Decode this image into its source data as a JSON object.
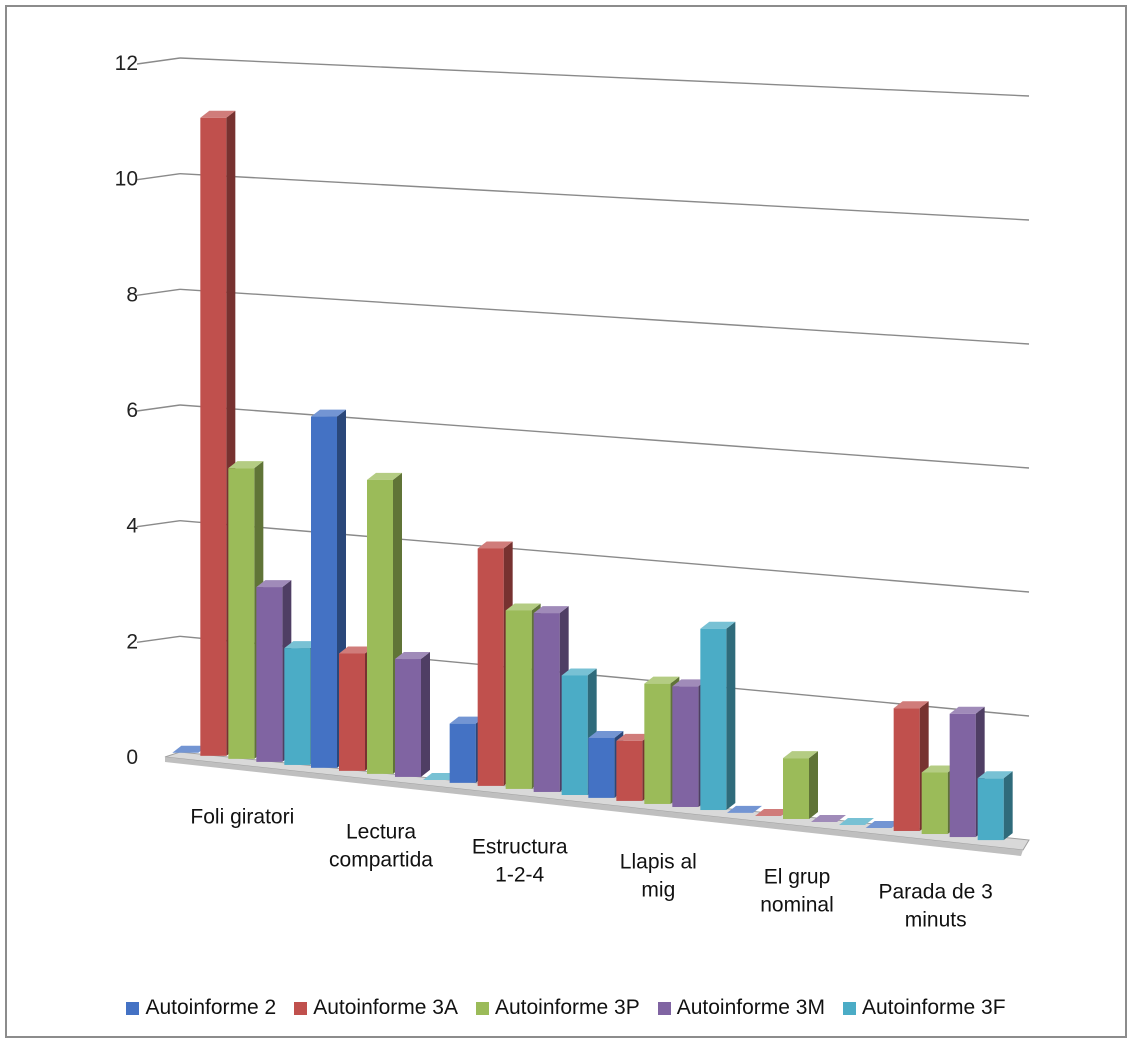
{
  "chart_data": {
    "type": "bar",
    "categories": [
      [
        "Foli giratori"
      ],
      [
        "Lectura",
        "compartida"
      ],
      [
        "Estructura",
        "1-2-4"
      ],
      [
        "Llapis al",
        "mig"
      ],
      [
        "El grup",
        "nominal"
      ],
      [
        "Parada de 3",
        "minuts"
      ]
    ],
    "series": [
      {
        "name": "Autoinforme 2",
        "color": "#4472C4",
        "values": [
          0,
          6,
          1,
          1,
          0,
          0
        ]
      },
      {
        "name": "Autoinforme 3A",
        "color": "#C0504D",
        "values": [
          11,
          2,
          4,
          1,
          0,
          2
        ]
      },
      {
        "name": "Autoinforme 3P",
        "color": "#9BBB59",
        "values": [
          5,
          5,
          3,
          2,
          1,
          1
        ]
      },
      {
        "name": "Autoinforme 3M",
        "color": "#8064A2",
        "values": [
          3,
          2,
          3,
          2,
          0,
          2
        ]
      },
      {
        "name": "Autoinforme 3F",
        "color": "#4BACC6",
        "values": [
          2,
          0,
          2,
          3,
          0,
          1
        ]
      }
    ],
    "yticks": [
      "0",
      "2",
      "4",
      "6",
      "8",
      "10",
      "12"
    ],
    "ylim": [
      0,
      12
    ],
    "legend_position": "bottom",
    "grid": true
  }
}
